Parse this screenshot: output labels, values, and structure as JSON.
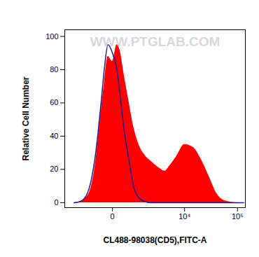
{
  "chart_data": {
    "type": "area",
    "watermark": "WWW.PTGLAB.COM",
    "x_label": "CL488-98038(CD5),FITC-A",
    "y_label": "Relative Cell Number",
    "x": [
      -2000,
      -1500,
      -1000,
      -700,
      -500,
      -300,
      -200,
      -100,
      0,
      100,
      200,
      300,
      500,
      700,
      1000,
      1500,
      2000,
      3000,
      4000,
      5000,
      7000,
      10000,
      15000,
      20000,
      30000,
      40000,
      60000,
      80000,
      100000,
      130000
    ],
    "series": [
      {
        "type": "area",
        "color": "#ff0000",
        "values": [
          0,
          0.5,
          3,
          10,
          25,
          55,
          72,
          88,
          85,
          95,
          90,
          78,
          60,
          46,
          35,
          28,
          25,
          21,
          19,
          22,
          28,
          35,
          33,
          27,
          15,
          6,
          1,
          0.3,
          0,
          0
        ]
      },
      {
        "type": "line",
        "color": "#1c1c8c",
        "values": [
          0,
          0.5,
          4,
          14,
          30,
          60,
          80,
          95,
          90,
          80,
          62,
          45,
          25,
          10,
          3,
          0.5,
          0,
          0,
          0,
          0,
          0,
          0,
          0,
          0,
          0,
          0,
          0,
          0,
          0,
          0
        ]
      }
    ],
    "log": "x",
    "xlim": [
      -3200,
      140000
    ],
    "ylim": [
      -3,
      104
    ],
    "xticks": [
      0,
      {
        "value": 10000,
        "label": "10⁴"
      },
      {
        "value": 100000,
        "label": "10⁵"
      }
    ],
    "yticks": [
      0,
      20,
      40,
      60,
      80,
      100
    ],
    "grid": false
  }
}
